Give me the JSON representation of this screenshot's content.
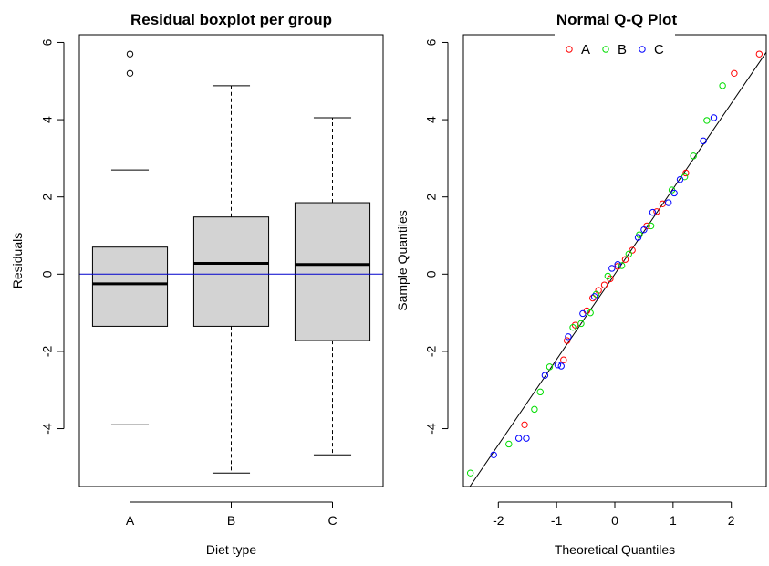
{
  "chart_data": [
    {
      "type": "boxplot",
      "title": "Residual boxplot per group",
      "xlabel": "Diet type",
      "ylabel": "Residuals",
      "categories": [
        "A",
        "B",
        "C"
      ],
      "ylim": [
        -5.5,
        6.2
      ],
      "yticks": [
        -4,
        -2,
        0,
        2,
        4,
        6
      ],
      "reference_line": {
        "y": 0,
        "color": "#0000cc"
      },
      "box_color": "#d3d3d3",
      "boxes": [
        {
          "category": "A",
          "whisker_low": -3.9,
          "q1": -1.35,
          "median": -0.25,
          "q3": 0.7,
          "whisker_high": 2.7,
          "outliers": [
            5.2,
            5.7
          ]
        },
        {
          "category": "B",
          "whisker_low": -5.15,
          "q1": -1.35,
          "median": 0.28,
          "q3": 1.48,
          "whisker_high": 4.88,
          "outliers": []
        },
        {
          "category": "C",
          "whisker_low": -4.68,
          "q1": -1.72,
          "median": 0.25,
          "q3": 1.85,
          "whisker_high": 4.05,
          "outliers": []
        }
      ]
    },
    {
      "type": "scatter",
      "title": "Normal Q-Q Plot",
      "xlabel": "Theoretical Quantiles",
      "ylabel": "Sample Quantiles",
      "xlim": [
        -2.6,
        2.6
      ],
      "ylim": [
        -5.5,
        6.2
      ],
      "xticks": [
        -2,
        -1,
        0,
        1,
        2
      ],
      "yticks": [
        -4,
        -2,
        0,
        2,
        4,
        6
      ],
      "legend_position": "top-center",
      "reference_line": {
        "slope": 2.21,
        "intercept": 0.0
      },
      "series": [
        {
          "name": "A",
          "color": "#ff0000",
          "points": [
            [
              -1.55,
              -3.9
            ],
            [
              -0.88,
              -2.22
            ],
            [
              -0.82,
              -1.72
            ],
            [
              -0.68,
              -1.32
            ],
            [
              -0.48,
              -0.95
            ],
            [
              -0.38,
              -0.62
            ],
            [
              -0.28,
              -0.42
            ],
            [
              -0.18,
              -0.28
            ],
            [
              -0.08,
              -0.12
            ],
            [
              0.05,
              0.2
            ],
            [
              0.18,
              0.38
            ],
            [
              0.3,
              0.62
            ],
            [
              0.55,
              1.25
            ],
            [
              0.72,
              1.62
            ],
            [
              0.82,
              1.82
            ],
            [
              1.22,
              2.62
            ],
            [
              2.05,
              5.2
            ],
            [
              2.48,
              5.7
            ]
          ]
        },
        {
          "name": "B",
          "color": "#00dd00",
          "points": [
            [
              -2.48,
              -5.15
            ],
            [
              -1.82,
              -4.4
            ],
            [
              -1.38,
              -3.5
            ],
            [
              -1.28,
              -3.05
            ],
            [
              -1.12,
              -2.4
            ],
            [
              -0.72,
              -1.38
            ],
            [
              -0.58,
              -1.28
            ],
            [
              -0.42,
              -1.0
            ],
            [
              -0.32,
              -0.52
            ],
            [
              -0.12,
              -0.05
            ],
            [
              0.12,
              0.22
            ],
            [
              0.24,
              0.52
            ],
            [
              0.42,
              1.02
            ],
            [
              0.62,
              1.25
            ],
            [
              0.98,
              2.18
            ],
            [
              1.2,
              2.52
            ],
            [
              1.35,
              3.06
            ],
            [
              1.58,
              3.98
            ],
            [
              1.85,
              4.88
            ]
          ]
        },
        {
          "name": "C",
          "color": "#0000ff",
          "points": [
            [
              -2.08,
              -4.68
            ],
            [
              -1.65,
              -4.25
            ],
            [
              -1.52,
              -4.25
            ],
            [
              -1.2,
              -2.62
            ],
            [
              -0.98,
              -2.35
            ],
            [
              -0.92,
              -2.38
            ],
            [
              -0.8,
              -1.62
            ],
            [
              -0.55,
              -1.02
            ],
            [
              -0.35,
              -0.58
            ],
            [
              -0.05,
              0.15
            ],
            [
              0.05,
              0.25
            ],
            [
              0.4,
              0.95
            ],
            [
              0.5,
              1.15
            ],
            [
              0.65,
              1.6
            ],
            [
              0.92,
              1.85
            ],
            [
              1.02,
              2.1
            ],
            [
              1.12,
              2.45
            ],
            [
              1.52,
              3.45
            ],
            [
              1.7,
              4.05
            ]
          ]
        }
      ]
    }
  ]
}
